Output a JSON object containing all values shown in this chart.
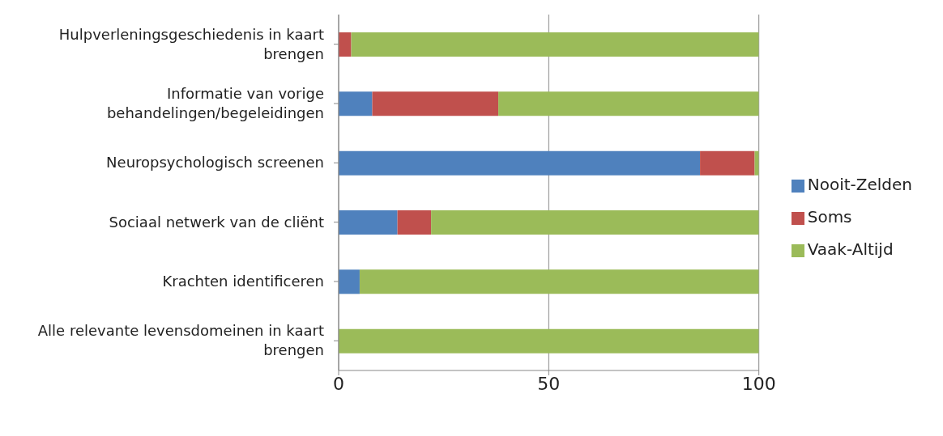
{
  "chart_data": {
    "type": "bar",
    "orientation": "horizontal",
    "stacked": true,
    "categories": [
      "Hulpverleningsgeschiedenis in kaart brengen",
      "Informatie van vorige behandelingen/begeleidingen",
      "Neuropsychologisch screenen",
      "Sociaal netwerk van de cliënt",
      "Krachten identificeren",
      "Alle relevante levensdomeinen in kaart brengen"
    ],
    "series": [
      {
        "name": "Nooit-Zelden",
        "color": "#4f81bd",
        "values": [
          0,
          8,
          86,
          14,
          5,
          0
        ]
      },
      {
        "name": "Soms",
        "color": "#c0504d",
        "values": [
          3,
          30,
          13,
          8,
          0,
          0
        ]
      },
      {
        "name": "Vaak-Altijd",
        "color": "#9bbb59",
        "values": [
          97,
          62,
          1,
          78,
          95,
          100
        ]
      }
    ],
    "xlim": [
      0,
      100
    ],
    "xticks": [
      0,
      50,
      100
    ],
    "grid": "x",
    "legend": "right"
  }
}
